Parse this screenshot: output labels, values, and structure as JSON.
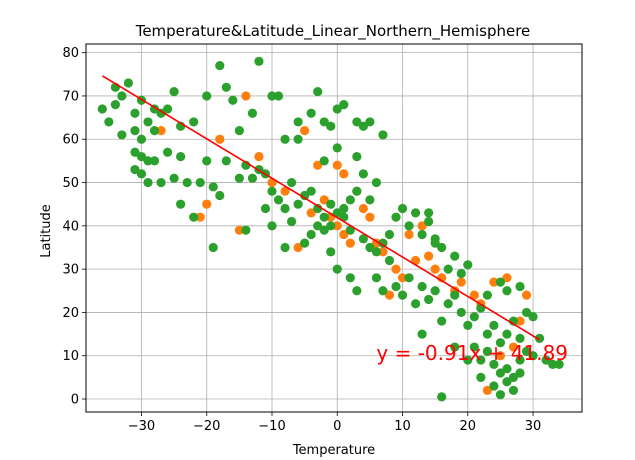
{
  "chart_data": {
    "type": "scatter",
    "title": "Temperature&Latitude_Linear_Northern_Hemisphere",
    "xlabel": "Temperature",
    "ylabel": "Latitude",
    "xlim": [
      -38.5,
      37.5
    ],
    "ylim": [
      -3,
      82
    ],
    "xticks": [
      -30,
      -20,
      -10,
      0,
      10,
      20,
      30
    ],
    "yticks": [
      0,
      10,
      20,
      30,
      40,
      50,
      60,
      70,
      80
    ],
    "xtick_labels": [
      "−30",
      "−20",
      "−10",
      "0",
      "10",
      "20",
      "30"
    ],
    "ytick_labels": [
      "0",
      "10",
      "20",
      "30",
      "40",
      "50",
      "60",
      "70",
      "80"
    ],
    "grid": true,
    "series": [
      {
        "color": "#ff7f0e",
        "points": [
          [
            -14,
            70
          ],
          [
            -18,
            60
          ],
          [
            -12,
            56
          ],
          [
            -10,
            50
          ],
          [
            -8,
            48
          ],
          [
            -5,
            62
          ],
          [
            -3,
            54
          ],
          [
            -2,
            46
          ],
          [
            -1,
            42
          ],
          [
            0,
            40
          ],
          [
            1,
            38
          ],
          [
            2,
            36
          ],
          [
            3,
            48
          ],
          [
            4,
            44
          ],
          [
            5,
            42
          ],
          [
            6,
            36
          ],
          [
            7,
            34
          ],
          [
            9,
            30
          ],
          [
            10,
            28
          ],
          [
            11,
            38
          ],
          [
            12,
            32
          ],
          [
            13,
            40
          ],
          [
            14,
            33
          ],
          [
            16,
            28
          ],
          [
            18,
            25
          ],
          [
            19,
            27
          ],
          [
            21,
            24
          ],
          [
            22,
            22
          ],
          [
            24,
            27
          ],
          [
            26,
            28
          ],
          [
            27,
            12
          ],
          [
            28,
            18
          ],
          [
            29,
            24
          ],
          [
            25,
            10
          ],
          [
            23,
            2
          ],
          [
            -20,
            45
          ],
          [
            -21,
            42
          ],
          [
            -27,
            62
          ],
          [
            -15,
            39
          ],
          [
            -6,
            35
          ],
          [
            -4,
            43
          ],
          [
            1,
            52
          ],
          [
            0,
            54
          ],
          [
            15,
            30
          ],
          [
            8,
            24
          ]
        ]
      },
      {
        "color": "#2ca02c",
        "points": [
          [
            -36,
            67
          ],
          [
            -35,
            64
          ],
          [
            -34,
            72
          ],
          [
            -33,
            70
          ],
          [
            -32,
            73
          ],
          [
            -31,
            66
          ],
          [
            -30,
            69
          ],
          [
            -29,
            64
          ],
          [
            -28,
            67
          ],
          [
            -27,
            66
          ],
          [
            -26,
            67
          ],
          [
            -34,
            68
          ],
          [
            -33,
            61
          ],
          [
            -31,
            62
          ],
          [
            -30,
            60
          ],
          [
            -28,
            62
          ],
          [
            -25,
            71
          ],
          [
            -24,
            63
          ],
          [
            -22,
            64
          ],
          [
            -20,
            70
          ],
          [
            -18,
            77
          ],
          [
            -17,
            72
          ],
          [
            -16,
            69
          ],
          [
            -15,
            62
          ],
          [
            -13,
            66
          ],
          [
            -12,
            78
          ],
          [
            -10,
            70
          ],
          [
            -9,
            70
          ],
          [
            -8,
            60
          ],
          [
            -6,
            64
          ],
          [
            -4,
            66
          ],
          [
            -3,
            71
          ],
          [
            -2,
            64
          ],
          [
            -1,
            63
          ],
          [
            0,
            67
          ],
          [
            1,
            68
          ],
          [
            3,
            64
          ],
          [
            4,
            63
          ],
          [
            5,
            64
          ],
          [
            7,
            61
          ],
          [
            -31,
            57
          ],
          [
            -30,
            56
          ],
          [
            -29,
            55
          ],
          [
            -28,
            55
          ],
          [
            -26,
            57
          ],
          [
            -24,
            56
          ],
          [
            -31,
            53
          ],
          [
            -30,
            52
          ],
          [
            -29,
            50
          ],
          [
            -27,
            50
          ],
          [
            -25,
            51
          ],
          [
            -23,
            50
          ],
          [
            -21,
            50
          ],
          [
            -20,
            55
          ],
          [
            -19,
            49
          ],
          [
            -18,
            47
          ],
          [
            -17,
            55
          ],
          [
            -15,
            51
          ],
          [
            -14,
            54
          ],
          [
            -13,
            51
          ],
          [
            -12,
            53
          ],
          [
            -11,
            52
          ],
          [
            -10,
            48
          ],
          [
            -9,
            46
          ],
          [
            -8,
            44
          ],
          [
            -7,
            50
          ],
          [
            -6,
            45
          ],
          [
            -5,
            47
          ],
          [
            -4,
            48
          ],
          [
            -3,
            44
          ],
          [
            -2,
            42
          ],
          [
            -1,
            45
          ],
          [
            0,
            43
          ],
          [
            1,
            44
          ],
          [
            2,
            46
          ],
          [
            3,
            48
          ],
          [
            -24,
            45
          ],
          [
            -22,
            42
          ],
          [
            -19,
            35
          ],
          [
            -14,
            39
          ],
          [
            -11,
            44
          ],
          [
            -10,
            40
          ],
          [
            -8,
            35
          ],
          [
            -7,
            41
          ],
          [
            -5,
            36
          ],
          [
            -4,
            38
          ],
          [
            -2,
            39
          ],
          [
            -1,
            40
          ],
          [
            1,
            42
          ],
          [
            2,
            39
          ],
          [
            4,
            37
          ],
          [
            5,
            35
          ],
          [
            6,
            34
          ],
          [
            7,
            36
          ],
          [
            8,
            38
          ],
          [
            9,
            42
          ],
          [
            10,
            44
          ],
          [
            11,
            40
          ],
          [
            12,
            43
          ],
          [
            13,
            38
          ],
          [
            14,
            41
          ],
          [
            15,
            37
          ],
          [
            16,
            35
          ],
          [
            17,
            30
          ],
          [
            18,
            33
          ],
          [
            19,
            29
          ],
          [
            20,
            31
          ],
          [
            8,
            32
          ],
          [
            9,
            26
          ],
          [
            10,
            24
          ],
          [
            11,
            28
          ],
          [
            12,
            22
          ],
          [
            13,
            26
          ],
          [
            14,
            23
          ],
          [
            15,
            25
          ],
          [
            16,
            18
          ],
          [
            17,
            22
          ],
          [
            18,
            24
          ],
          [
            19,
            20
          ],
          [
            20,
            17
          ],
          [
            21,
            19
          ],
          [
            22,
            21
          ],
          [
            23,
            15
          ],
          [
            24,
            17
          ],
          [
            25,
            13
          ],
          [
            26,
            15
          ],
          [
            27,
            18
          ],
          [
            28,
            14
          ],
          [
            29,
            20
          ],
          [
            30,
            19
          ],
          [
            31,
            14
          ],
          [
            21,
            12
          ],
          [
            22,
            9
          ],
          [
            23,
            11
          ],
          [
            24,
            8
          ],
          [
            25,
            6
          ],
          [
            26,
            7
          ],
          [
            27,
            5
          ],
          [
            28,
            9
          ],
          [
            29,
            11
          ],
          [
            24,
            3
          ],
          [
            25,
            1
          ],
          [
            26,
            4
          ],
          [
            27,
            2
          ],
          [
            28,
            6
          ],
          [
            30,
            10
          ],
          [
            32,
            9
          ],
          [
            33,
            8
          ],
          [
            34,
            8
          ],
          [
            16,
            0.5
          ],
          [
            25,
            27
          ],
          [
            26,
            25
          ],
          [
            28,
            26
          ],
          [
            6,
            28
          ],
          [
            7,
            25
          ],
          [
            3,
            25
          ],
          [
            0,
            30
          ],
          [
            2,
            28
          ],
          [
            -1,
            34
          ],
          [
            -3,
            40
          ],
          [
            18,
            12
          ],
          [
            20,
            9
          ],
          [
            13,
            15
          ],
          [
            14,
            43
          ],
          [
            15,
            36
          ],
          [
            -6,
            60
          ],
          [
            0,
            58
          ],
          [
            3,
            56
          ],
          [
            -2,
            55
          ],
          [
            4,
            52
          ],
          [
            6,
            50
          ],
          [
            5,
            46
          ],
          [
            22,
            5
          ],
          [
            23,
            24
          ]
        ]
      }
    ],
    "regression": {
      "color": "#ff0000",
      "slope": -0.91,
      "intercept": 41.89,
      "x_range": [
        -36,
        31
      ],
      "equation": "y = -0.91x + 41.89",
      "equation_anchor": [
        6,
        9
      ]
    }
  }
}
